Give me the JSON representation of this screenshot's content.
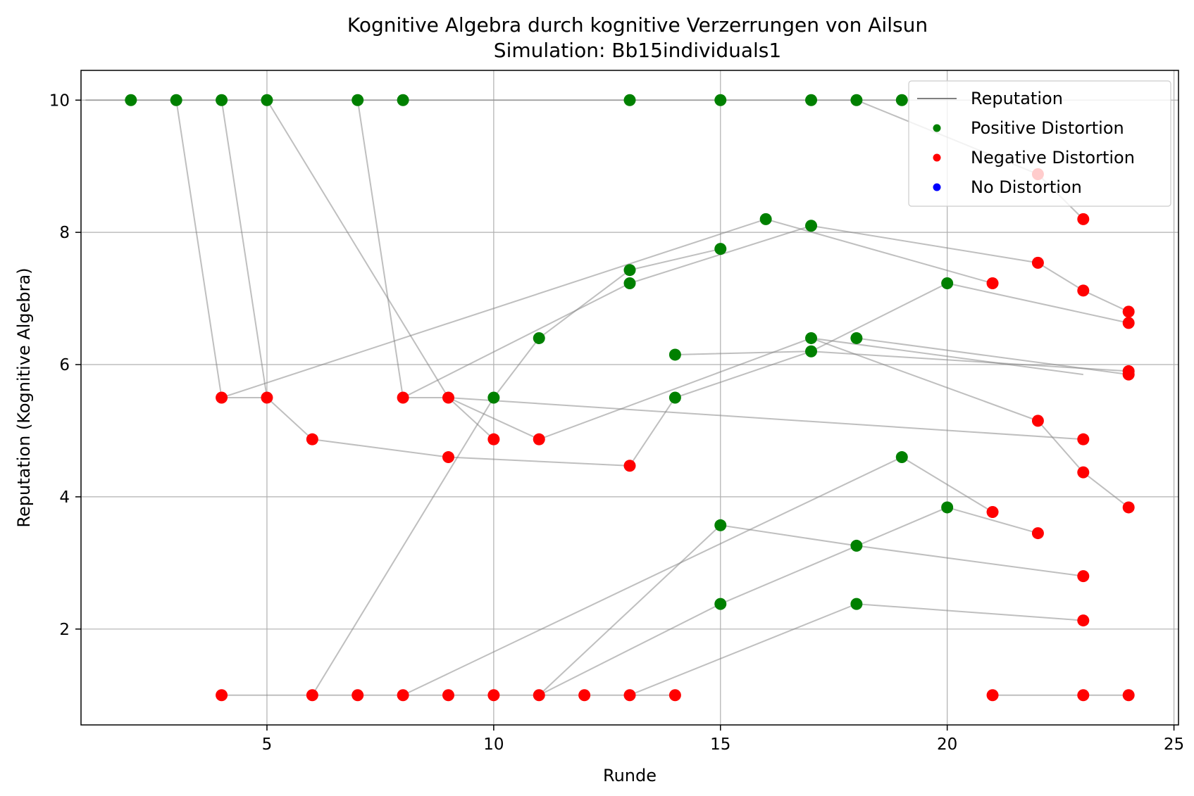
{
  "chart_data": {
    "type": "scatter",
    "title": "Kognitive Algebra durch kognitive Verzerrungen von Ailsun",
    "subtitle": "Simulation: Bb15individuals1",
    "xlabel": "Runde",
    "ylabel": "Reputation (Kognitive Algebra)",
    "xlim": [
      0.9,
      25.1
    ],
    "ylim": [
      0.55,
      10.45
    ],
    "xticks": [
      5,
      10,
      15,
      20,
      25
    ],
    "yticks": [
      2,
      4,
      6,
      8,
      10
    ],
    "grid": true,
    "legend_position": "top-right",
    "legend": [
      {
        "label": "Reputation",
        "kind": "line",
        "color": "#808080"
      },
      {
        "label": "Positive Distortion",
        "kind": "marker",
        "color": "#008000"
      },
      {
        "label": "Negative Distortion",
        "kind": "marker",
        "color": "#ff0000"
      },
      {
        "label": "No Distortion",
        "kind": "marker",
        "color": "#0000ff"
      }
    ],
    "colors": {
      "positive": "#008000",
      "negative": "#ff0000",
      "none": "#0000ff",
      "line": "#808080"
    },
    "lines": [
      [
        [
          1,
          10
        ],
        [
          3,
          10
        ],
        [
          4,
          10
        ],
        [
          5,
          10
        ],
        [
          7,
          10
        ],
        [
          8,
          10
        ],
        [
          13,
          10
        ],
        [
          15,
          10
        ],
        [
          17,
          10
        ],
        [
          18,
          10
        ],
        [
          19,
          10
        ]
      ],
      [
        [
          3,
          10
        ],
        [
          4,
          5.5
        ],
        [
          5,
          5.5
        ],
        [
          6,
          4.87
        ],
        [
          9,
          4.6
        ],
        [
          13,
          4.47
        ]
      ],
      [
        [
          4,
          10
        ],
        [
          5,
          5.5
        ]
      ],
      [
        [
          5,
          10
        ],
        [
          9,
          5.5
        ],
        [
          10,
          4.87
        ]
      ],
      [
        [
          7,
          10
        ],
        [
          8,
          5.5
        ],
        [
          9,
          5.5
        ],
        [
          11,
          4.87
        ],
        [
          17,
          6.4
        ],
        [
          23,
          5.85
        ]
      ],
      [
        [
          18,
          10
        ],
        [
          22,
          8.88
        ],
        [
          23,
          8.2
        ]
      ],
      [
        [
          4,
          5.5
        ],
        [
          16,
          8.2
        ],
        [
          21,
          7.23
        ]
      ],
      [
        [
          8,
          5.5
        ],
        [
          13,
          7.23
        ],
        [
          17,
          8.1
        ],
        [
          22,
          7.54
        ],
        [
          23,
          7.12
        ],
        [
          24,
          6.8
        ]
      ],
      [
        [
          9,
          5.5
        ],
        [
          23,
          4.87
        ]
      ],
      [
        [
          10,
          5.5
        ],
        [
          11,
          6.4
        ],
        [
          13,
          7.43
        ],
        [
          15,
          7.75
        ]
      ],
      [
        [
          14,
          6.15
        ],
        [
          17,
          6.2
        ],
        [
          24,
          5.9
        ]
      ],
      [
        [
          13,
          4.47
        ],
        [
          14,
          5.5
        ],
        [
          17,
          6.2
        ],
        [
          20,
          7.23
        ],
        [
          24,
          6.63
        ]
      ],
      [
        [
          18,
          6.4
        ],
        [
          24,
          5.85
        ]
      ],
      [
        [
          17,
          6.4
        ],
        [
          22,
          5.15
        ],
        [
          23,
          4.37
        ],
        [
          24,
          3.84
        ]
      ],
      [
        [
          4,
          1
        ],
        [
          14,
          1
        ]
      ],
      [
        [
          6,
          1
        ],
        [
          10,
          5.5
        ]
      ],
      [
        [
          8,
          1
        ],
        [
          19,
          4.6
        ],
        [
          21,
          3.77
        ]
      ],
      [
        [
          11,
          1
        ],
        [
          15,
          3.57
        ],
        [
          18,
          3.26
        ],
        [
          23,
          2.8
        ]
      ],
      [
        [
          11,
          1
        ],
        [
          15,
          2.38
        ],
        [
          20,
          3.84
        ],
        [
          22,
          3.45
        ]
      ],
      [
        [
          13,
          1
        ],
        [
          18,
          2.38
        ],
        [
          23,
          2.13
        ]
      ],
      [
        [
          21,
          1
        ],
        [
          24,
          1
        ]
      ]
    ],
    "positive_points": [
      [
        2,
        10
      ],
      [
        3,
        10
      ],
      [
        4,
        10
      ],
      [
        5,
        10
      ],
      [
        7,
        10
      ],
      [
        8,
        10
      ],
      [
        13,
        10
      ],
      [
        15,
        10
      ],
      [
        17,
        10
      ],
      [
        18,
        10
      ],
      [
        19,
        10
      ],
      [
        16,
        8.2
      ],
      [
        17,
        8.1
      ],
      [
        15,
        7.75
      ],
      [
        13,
        7.43
      ],
      [
        13,
        7.23
      ],
      [
        20,
        7.23
      ],
      [
        11,
        6.4
      ],
      [
        17,
        6.4
      ],
      [
        18,
        6.4
      ],
      [
        17,
        6.2
      ],
      [
        14,
        6.15
      ],
      [
        10,
        5.5
      ],
      [
        14,
        5.5
      ],
      [
        19,
        4.6
      ],
      [
        20,
        3.84
      ],
      [
        15,
        3.57
      ],
      [
        18,
        3.26
      ],
      [
        15,
        2.38
      ],
      [
        18,
        2.38
      ]
    ],
    "negative_points": [
      [
        22,
        8.88
      ],
      [
        23,
        8.2
      ],
      [
        22,
        7.54
      ],
      [
        21,
        7.23
      ],
      [
        23,
        7.12
      ],
      [
        24,
        6.8
      ],
      [
        24,
        6.63
      ],
      [
        24,
        5.9
      ],
      [
        24,
        5.85
      ],
      [
        4,
        5.5
      ],
      [
        5,
        5.5
      ],
      [
        8,
        5.5
      ],
      [
        9,
        5.5
      ],
      [
        6,
        4.87
      ],
      [
        10,
        4.87
      ],
      [
        11,
        4.87
      ],
      [
        22,
        5.15
      ],
      [
        23,
        4.87
      ],
      [
        9,
        4.6
      ],
      [
        13,
        4.47
      ],
      [
        23,
        4.37
      ],
      [
        24,
        3.84
      ],
      [
        21,
        3.77
      ],
      [
        22,
        3.45
      ],
      [
        23,
        2.8
      ],
      [
        23,
        2.13
      ],
      [
        4,
        1
      ],
      [
        6,
        1
      ],
      [
        7,
        1
      ],
      [
        8,
        1
      ],
      [
        9,
        1
      ],
      [
        10,
        1
      ],
      [
        11,
        1
      ],
      [
        12,
        1
      ],
      [
        13,
        1
      ],
      [
        14,
        1
      ],
      [
        21,
        1
      ],
      [
        23,
        1
      ],
      [
        24,
        1
      ]
    ],
    "none_points": []
  }
}
